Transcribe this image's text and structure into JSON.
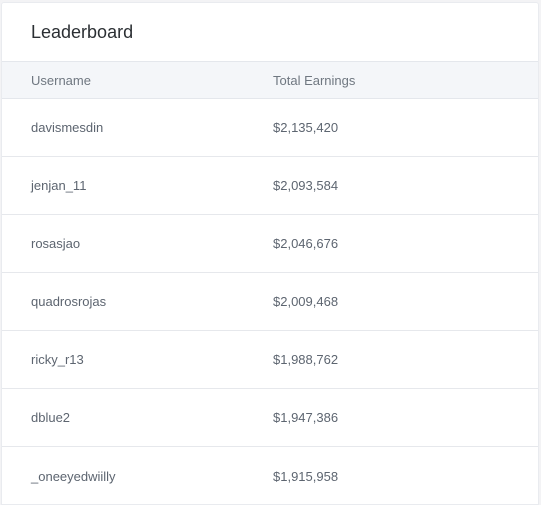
{
  "leaderboard": {
    "title": "Leaderboard",
    "columns": {
      "username": "Username",
      "earnings": "Total Earnings"
    },
    "rows": [
      {
        "username": "davismesdin",
        "earnings": "$2,135,420"
      },
      {
        "username": "jenjan_11",
        "earnings": "$2,093,584"
      },
      {
        "username": "rosasjao",
        "earnings": "$2,046,676"
      },
      {
        "username": "quadrosrojas",
        "earnings": "$2,009,468"
      },
      {
        "username": "ricky_r13",
        "earnings": "$1,988,762"
      },
      {
        "username": "dblue2",
        "earnings": "$1,947,386"
      },
      {
        "username": "_oneeyedwiilly",
        "earnings": "$1,915,958"
      }
    ]
  }
}
